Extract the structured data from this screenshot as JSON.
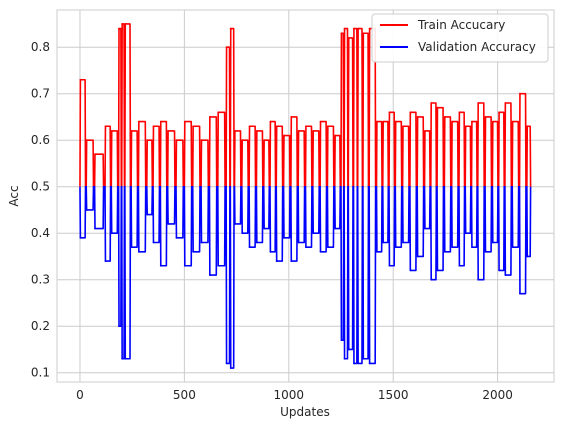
{
  "chart_data": {
    "type": "line",
    "title": "",
    "xlabel": "Updates",
    "ylabel": "Acc",
    "xlim": [
      -110,
      2270
    ],
    "ylim": [
      0.08,
      0.88
    ],
    "xticks": [
      0,
      500,
      1000,
      1500,
      2000
    ],
    "yticks": [
      0.1,
      0.2,
      0.3,
      0.4,
      0.5,
      0.6,
      0.7,
      0.8
    ],
    "grid": true,
    "legend_placement": "top-right",
    "baseline": 0.5,
    "series": [
      {
        "name": "Train Accucary",
        "color": "#ff0000",
        "x": [
          0,
          30,
          70,
          120,
          150,
          185,
          200,
          215,
          245,
          280,
          320,
          350,
          385,
          420,
          460,
          500,
          540,
          580,
          620,
          660,
          700,
          720,
          740,
          775,
          810,
          845,
          880,
          910,
          940,
          975,
          1010,
          1045,
          1080,
          1115,
          1150,
          1185,
          1220,
          1250,
          1265,
          1285,
          1310,
          1330,
          1355,
          1385,
          1420,
          1450,
          1480,
          1510,
          1545,
          1580,
          1615,
          1650,
          1680,
          1710,
          1745,
          1780,
          1815,
          1845,
          1875,
          1905,
          1940,
          1975,
          2005,
          2035,
          2070,
          2105,
          2140
        ],
        "values": [
          0.73,
          0.6,
          0.57,
          0.63,
          0.62,
          0.84,
          0.85,
          0.85,
          0.62,
          0.64,
          0.6,
          0.63,
          0.64,
          0.62,
          0.6,
          0.64,
          0.63,
          0.6,
          0.65,
          0.66,
          0.8,
          0.84,
          0.62,
          0.6,
          0.63,
          0.62,
          0.6,
          0.64,
          0.63,
          0.61,
          0.65,
          0.62,
          0.63,
          0.62,
          0.64,
          0.63,
          0.61,
          0.83,
          0.84,
          0.82,
          0.84,
          0.84,
          0.83,
          0.84,
          0.64,
          0.64,
          0.66,
          0.64,
          0.63,
          0.66,
          0.65,
          0.62,
          0.68,
          0.67,
          0.65,
          0.64,
          0.66,
          0.63,
          0.64,
          0.68,
          0.65,
          0.64,
          0.66,
          0.68,
          0.64,
          0.7,
          0.63
        ]
      },
      {
        "name": "Validation Accuracy",
        "color": "#0000ff",
        "x": [
          0,
          30,
          70,
          120,
          150,
          185,
          200,
          215,
          245,
          280,
          320,
          350,
          385,
          420,
          460,
          500,
          540,
          580,
          620,
          660,
          700,
          720,
          740,
          775,
          810,
          845,
          880,
          910,
          940,
          975,
          1010,
          1045,
          1080,
          1115,
          1150,
          1185,
          1220,
          1250,
          1265,
          1285,
          1310,
          1330,
          1355,
          1385,
          1420,
          1450,
          1480,
          1510,
          1545,
          1580,
          1615,
          1650,
          1680,
          1710,
          1745,
          1780,
          1815,
          1845,
          1875,
          1905,
          1940,
          1975,
          2005,
          2035,
          2070,
          2105,
          2140
        ],
        "values": [
          0.39,
          0.45,
          0.41,
          0.34,
          0.4,
          0.2,
          0.13,
          0.13,
          0.37,
          0.36,
          0.44,
          0.38,
          0.33,
          0.42,
          0.39,
          0.33,
          0.36,
          0.38,
          0.31,
          0.33,
          0.12,
          0.11,
          0.42,
          0.4,
          0.37,
          0.38,
          0.41,
          0.36,
          0.34,
          0.39,
          0.34,
          0.38,
          0.37,
          0.4,
          0.36,
          0.37,
          0.41,
          0.17,
          0.13,
          0.15,
          0.12,
          0.12,
          0.13,
          0.12,
          0.36,
          0.38,
          0.33,
          0.37,
          0.38,
          0.32,
          0.35,
          0.41,
          0.3,
          0.32,
          0.36,
          0.37,
          0.33,
          0.4,
          0.37,
          0.3,
          0.36,
          0.38,
          0.32,
          0.31,
          0.37,
          0.27,
          0.35
        ]
      }
    ]
  }
}
